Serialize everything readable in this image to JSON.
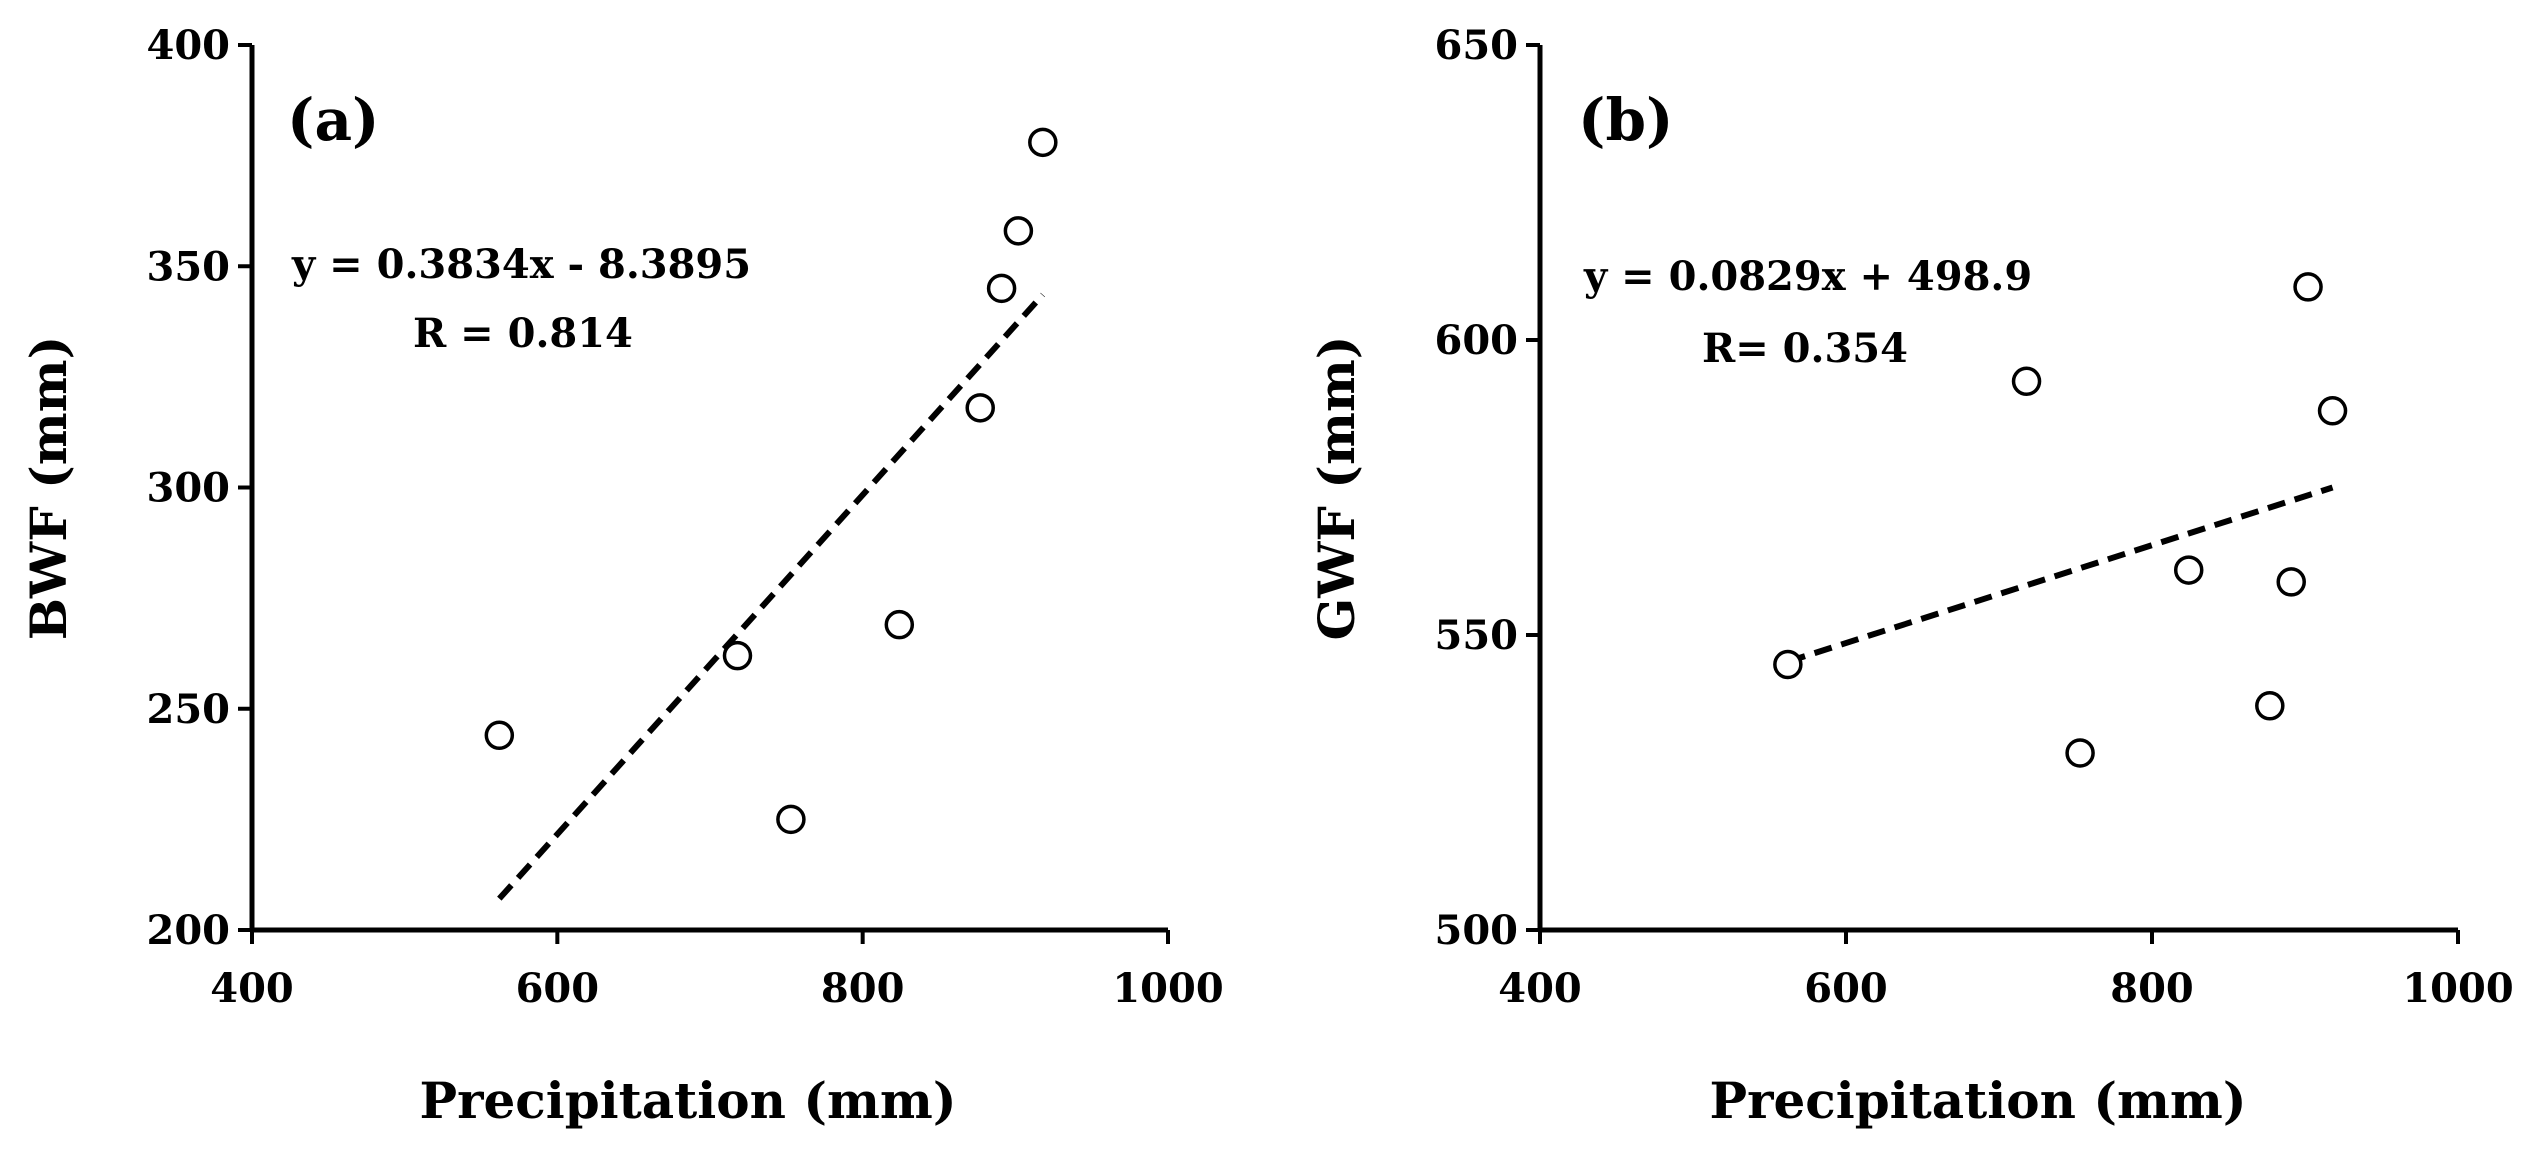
{
  "chart_data": [
    {
      "type": "scatter",
      "panel_label": "(a)",
      "xlabel": "Precipitation (mm)",
      "ylabel": "BWF (mm)",
      "xlim": [
        400,
        1000
      ],
      "ylim": [
        200,
        400
      ],
      "x_ticks": [
        400,
        600,
        800,
        1000
      ],
      "y_ticks": [
        200,
        250,
        300,
        350,
        400
      ],
      "x_tick_labels": [
        "400",
        "600",
        "800",
        "1000"
      ],
      "y_tick_labels": [
        "200",
        "250",
        "300",
        "350",
        "400"
      ],
      "points": [
        {
          "x": 562,
          "y": 244
        },
        {
          "x": 718,
          "y": 262
        },
        {
          "x": 753,
          "y": 225
        },
        {
          "x": 824,
          "y": 269
        },
        {
          "x": 877,
          "y": 318
        },
        {
          "x": 891,
          "y": 345
        },
        {
          "x": 902,
          "y": 358
        },
        {
          "x": 918,
          "y": 378
        }
      ],
      "trendline": {
        "slope": 0.3834,
        "intercept": -8.3895,
        "x_range": [
          562,
          918
        ]
      },
      "equation": "y = 0.3834x - 8.3895",
      "r_text": "R = 0.814"
    },
    {
      "type": "scatter",
      "panel_label": "(b)",
      "xlabel": "Precipitation (mm)",
      "ylabel": "GWF (mm)",
      "xlim": [
        400,
        1000
      ],
      "ylim": [
        500,
        650
      ],
      "x_ticks": [
        400,
        600,
        800,
        1000
      ],
      "y_ticks": [
        500,
        550,
        600,
        650
      ],
      "x_tick_labels": [
        "400",
        "600",
        "800",
        "1000"
      ],
      "y_tick_labels": [
        "500",
        "550",
        "600",
        "650"
      ],
      "points": [
        {
          "x": 562,
          "y": 545
        },
        {
          "x": 718,
          "y": 593
        },
        {
          "x": 753,
          "y": 530
        },
        {
          "x": 824,
          "y": 561
        },
        {
          "x": 877,
          "y": 538
        },
        {
          "x": 891,
          "y": 559
        },
        {
          "x": 902,
          "y": 609
        },
        {
          "x": 918,
          "y": 588
        }
      ],
      "trendline": {
        "slope": 0.0829,
        "intercept": 498.9,
        "x_range": [
          562,
          918
        ]
      },
      "equation": "y = 0.0829x + 498.9",
      "r_text": "R= 0.354"
    }
  ]
}
